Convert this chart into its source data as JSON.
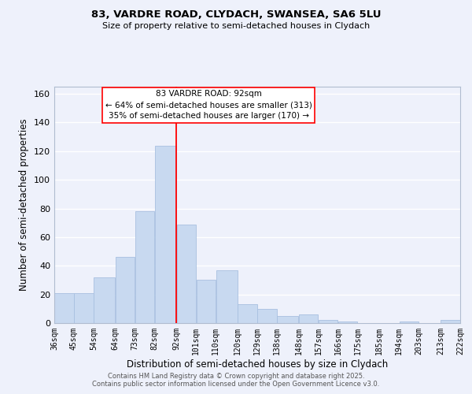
{
  "title": "83, VARDRE ROAD, CLYDACH, SWANSEA, SA6 5LU",
  "subtitle": "Size of property relative to semi-detached houses in Clydach",
  "xlabel": "Distribution of semi-detached houses by size in Clydach",
  "ylabel": "Number of semi-detached properties",
  "bar_color": "#c8d9f0",
  "bar_edge_color": "#a8c0e0",
  "background_color": "#eef1fb",
  "grid_color": "white",
  "vline_x": 92,
  "vline_color": "red",
  "annotation_title": "83 VARDRE ROAD: 92sqm",
  "annotation_line1": "← 64% of semi-detached houses are smaller (313)",
  "annotation_line2": "35% of semi-detached houses are larger (170) →",
  "bins": [
    36,
    45,
    54,
    64,
    73,
    82,
    92,
    101,
    110,
    120,
    129,
    138,
    148,
    157,
    166,
    175,
    185,
    194,
    203,
    213,
    222
  ],
  "counts": [
    21,
    21,
    32,
    46,
    78,
    124,
    69,
    30,
    37,
    13,
    10,
    5,
    6,
    2,
    1,
    0,
    0,
    1,
    0,
    2
  ],
  "ylim": [
    0,
    165
  ],
  "yticks": [
    0,
    20,
    40,
    60,
    80,
    100,
    120,
    140,
    160
  ],
  "footer1": "Contains HM Land Registry data © Crown copyright and database right 2025.",
  "footer2": "Contains public sector information licensed under the Open Government Licence v3.0."
}
